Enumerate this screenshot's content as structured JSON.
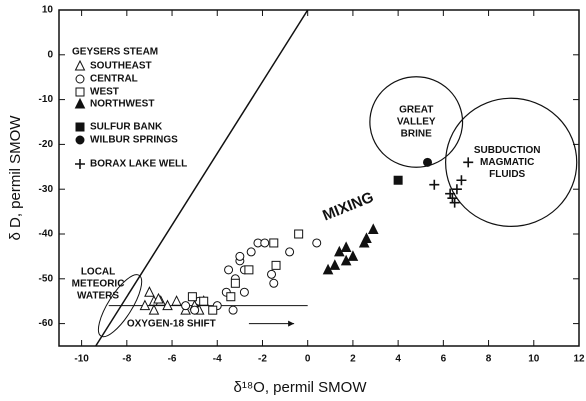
{
  "chart_data": {
    "type": "scatter",
    "x_label": "δ¹⁸O, permil SMOW",
    "y_label": "δ D, permil SMOW",
    "xlim": [
      -11,
      12
    ],
    "ylim": [
      -65,
      10
    ],
    "xticks": [
      -10,
      -8,
      -6,
      -4,
      -2,
      0,
      2,
      4,
      6,
      8,
      10,
      12
    ],
    "yticks": [
      10,
      0,
      -10,
      -20,
      -30,
      -40,
      -50,
      -60
    ],
    "legend_title": "GEYSERS STEAM",
    "series": [
      {
        "name": "SOUTHEAST",
        "marker": "triangle-open",
        "color": "#111",
        "x": [
          -7.0,
          -6.8,
          -7.2,
          -6.5,
          -6.8,
          -6.2,
          -5.8,
          -5.4,
          -5.0,
          -4.6,
          -4.8,
          -6.6
        ],
        "y": [
          -53,
          -55,
          -56,
          -55,
          -57,
          -56,
          -55,
          -57,
          -56,
          -55,
          -57,
          -54.5
        ]
      },
      {
        "name": "CENTRAL",
        "marker": "circle-open",
        "color": "#111",
        "x": [
          -5.4,
          -5.0,
          -4.8,
          -3.6,
          -3.2,
          -3.5,
          -3.0,
          -2.8,
          -2.5,
          -2.2,
          -1.9,
          -3.3,
          -1.6,
          -1.5,
          -0.8,
          0.4,
          -2.8,
          -4.0,
          -3.0
        ],
        "y": [
          -56,
          -57,
          -55,
          -53,
          -50,
          -48,
          -46,
          -48,
          -44,
          -42,
          -42,
          -57,
          -49,
          -51,
          -44,
          -42,
          -53,
          -56,
          -45
        ]
      },
      {
        "name": "WEST",
        "marker": "square-open",
        "color": "#111",
        "x": [
          -5.1,
          -4.6,
          -3.4,
          -3.2,
          -2.6,
          -1.4,
          -1.5,
          -0.4,
          -4.2
        ],
        "y": [
          -54,
          -55,
          -54,
          -51,
          -48,
          -47,
          -42,
          -40,
          -57
        ]
      },
      {
        "name": "NORTHWEST",
        "marker": "triangle-filled",
        "color": "#111",
        "x": [
          0.9,
          1.2,
          1.4,
          1.7,
          2.0,
          2.5,
          2.6,
          2.9,
          1.7
        ],
        "y": [
          -48,
          -47,
          -44,
          -46,
          -45,
          -42,
          -41,
          -39,
          -43
        ]
      },
      {
        "name": "SULFUR BANK",
        "marker": "square-filled",
        "color": "#111",
        "x": [
          4.0
        ],
        "y": [
          -28
        ]
      },
      {
        "name": "WILBUR SPRINGS",
        "marker": "circle-filled",
        "color": "#111",
        "x": [
          5.3
        ],
        "y": [
          -24
        ]
      },
      {
        "name": "BORAX LAKE WELL",
        "marker": "plus",
        "color": "#111",
        "x": [
          5.6,
          6.3,
          6.6,
          6.8,
          7.1,
          6.4,
          6.5
        ],
        "y": [
          -29,
          -31,
          -30,
          -28,
          -24,
          -32,
          -33
        ]
      }
    ],
    "meteoric_line": {
      "x": [
        -9.375,
        0
      ],
      "y": [
        -65,
        10
      ]
    },
    "regions": [
      {
        "label": [
          "GREAT",
          "VALLEY",
          "BRINE"
        ],
        "cx": 4.8,
        "cy": -15,
        "rx": 2.05,
        "ry": 10.1
      },
      {
        "label": [
          "SUBDUCTION",
          "MAGMATIC",
          "FLUIDS"
        ],
        "cx": 9.0,
        "cy": -24,
        "rx": 2.9,
        "ry": 14.3
      },
      {
        "label": [
          "LOCAL",
          "METEORIC",
          "WATERS"
        ],
        "cx": -8.3,
        "cy": -56,
        "rx": 0.35,
        "ry": 8
      }
    ],
    "shift_line": {
      "x": [
        -8.8,
        0
      ],
      "y": -56
    },
    "annotations": [
      "MIXING",
      "OXYGEN-18 SHIFT"
    ]
  }
}
